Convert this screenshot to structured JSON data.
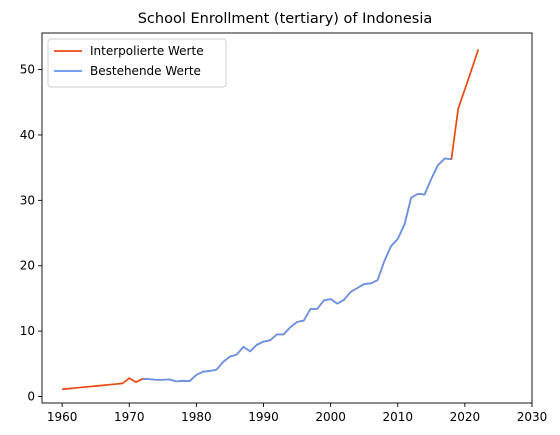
{
  "chart_data": {
    "type": "line",
    "title": "School Enrollment (tertiary) of Indonesia",
    "xlabel": "",
    "ylabel": "",
    "xlim": [
      1957,
      2030
    ],
    "ylim": [
      -1,
      55.6
    ],
    "xticks": [
      1960,
      1970,
      1980,
      1990,
      2000,
      2010,
      2020,
      2030
    ],
    "yticks": [
      0,
      10,
      20,
      30,
      40,
      50
    ],
    "grid": false,
    "legend_position": "top-left",
    "series": [
      {
        "name": "Interpolierte Werte",
        "color": "#e8490f",
        "x": [
          1960,
          1961,
          1962,
          1963,
          1964,
          1965,
          1966,
          1967,
          1968,
          1969,
          1970,
          1971,
          1972,
          1973,
          1974,
          1975,
          1976,
          1977,
          1978,
          1979,
          1980,
          1981,
          1982,
          1983,
          1984,
          1985,
          1986,
          1987,
          1988,
          1989,
          1990,
          1991,
          1992,
          1993,
          1994,
          1995,
          1996,
          1997,
          1998,
          1999,
          2000,
          2001,
          2002,
          2003,
          2004,
          2005,
          2006,
          2007,
          2008,
          2009,
          2010,
          2011,
          2012,
          2013,
          2014,
          2015,
          2016,
          2017,
          2018,
          2019,
          2020,
          2021,
          2022
        ],
        "y": [
          1.1,
          1.2,
          1.3,
          1.4,
          1.5,
          1.6,
          1.7,
          1.8,
          1.9,
          2.0,
          2.8,
          2.2,
          2.7,
          2.65,
          2.55,
          2.55,
          2.6,
          2.3,
          2.4,
          2.35,
          3.3,
          3.8,
          3.9,
          4.1,
          5.3,
          6.1,
          6.4,
          7.6,
          6.9,
          7.9,
          8.4,
          8.6,
          9.5,
          9.5,
          10.6,
          11.4,
          11.6,
          13.4,
          13.4,
          14.7,
          14.9,
          14.2,
          14.8,
          16.0,
          16.6,
          17.2,
          17.3,
          17.8,
          20.7,
          23.0,
          24.1,
          26.3,
          30.4,
          31.0,
          30.9,
          33.3,
          35.4,
          36.4,
          36.3,
          44.0,
          47.0,
          50.0,
          53.1
        ]
      },
      {
        "name": "Bestehende Werte",
        "color": "#6495ed",
        "x": [
          1972,
          1973,
          1974,
          1975,
          1976,
          1977,
          1978,
          1979,
          1980,
          1981,
          1982,
          1983,
          1984,
          1985,
          1986,
          1987,
          1988,
          1989,
          1990,
          1991,
          1992,
          1993,
          1994,
          1995,
          1996,
          1997,
          1998,
          1999,
          2000,
          2001,
          2002,
          2003,
          2004,
          2005,
          2006,
          2007,
          2008,
          2009,
          2010,
          2011,
          2012,
          2013,
          2014,
          2015,
          2016,
          2017,
          2018
        ],
        "y": [
          2.7,
          2.65,
          2.55,
          2.55,
          2.6,
          2.3,
          2.4,
          2.35,
          3.3,
          3.8,
          3.9,
          4.1,
          5.3,
          6.1,
          6.4,
          7.6,
          6.9,
          7.9,
          8.4,
          8.6,
          9.5,
          9.5,
          10.6,
          11.4,
          11.6,
          13.4,
          13.4,
          14.7,
          14.9,
          14.2,
          14.8,
          16.0,
          16.6,
          17.2,
          17.3,
          17.8,
          20.7,
          23.0,
          24.1,
          26.3,
          30.4,
          31.0,
          30.9,
          33.3,
          35.4,
          36.4,
          36.3
        ]
      }
    ]
  }
}
